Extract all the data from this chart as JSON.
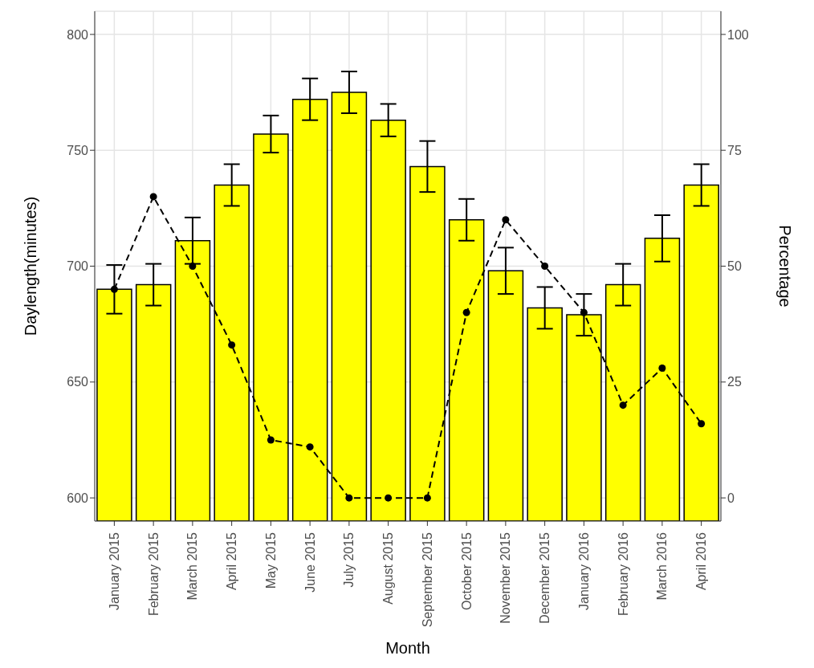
{
  "chart_data": {
    "type": "bar",
    "xlabel": "Month",
    "ylabel": "Daylength(minutes)",
    "y2label": "Percentage",
    "categories": [
      "January 2015",
      "February 2015",
      "March 2015",
      "April 2015",
      "May 2015",
      "June 2015",
      "July 2015",
      "August 2015",
      "September 2015",
      "October 2015",
      "November 2015",
      "December 2015",
      "January 2016",
      "February 2016",
      "March 2016",
      "April 2016"
    ],
    "series": [
      {
        "color": "#ffff00",
        "values": [
          690,
          692,
          711,
          735,
          757,
          772,
          775,
          763,
          743,
          720,
          698,
          682,
          679,
          692,
          712,
          735
        ],
        "errors": [
          10.5,
          9,
          10,
          9,
          8,
          9,
          9,
          7,
          11,
          9,
          10,
          9,
          9,
          9,
          10,
          9
        ]
      },
      {
        "type": "line",
        "axis": "y2",
        "color": "#000000",
        "values": [
          45,
          65,
          50,
          33,
          12.5,
          11,
          0,
          0,
          0,
          40,
          60,
          50,
          40,
          20,
          28,
          16
        ]
      }
    ],
    "ylim": [
      590,
      810
    ],
    "yticks": [
      600,
      650,
      700,
      750,
      800
    ],
    "y2lim": [
      -5,
      105
    ],
    "y2ticks": [
      0,
      25,
      50,
      75,
      100
    ],
    "grid": true,
    "marker": "circle",
    "line_style": "dashed"
  }
}
